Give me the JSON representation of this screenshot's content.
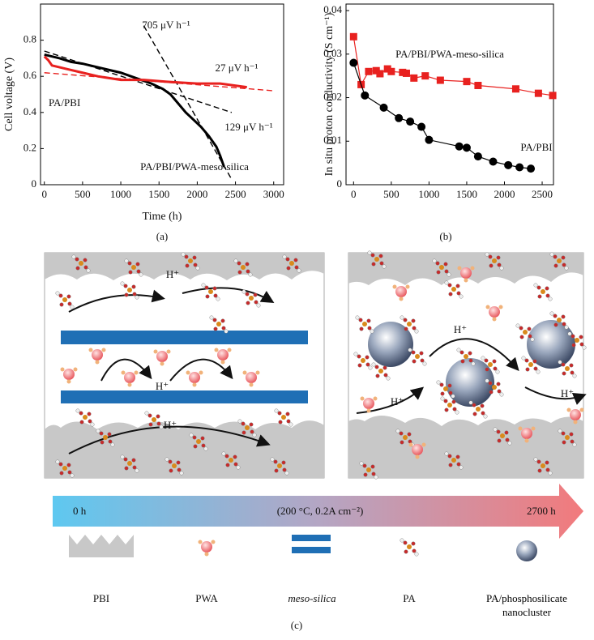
{
  "chart_data": [
    {
      "type": "line",
      "xlabel": "Time (h)",
      "ylabel": "Cell voltage (V)",
      "panel": "(a)",
      "xlim": [
        -50,
        3130
      ],
      "xticks": [
        0,
        500,
        1000,
        1500,
        2000,
        2500,
        3000
      ],
      "ylim": [
        0,
        1.0
      ],
      "yticks": [
        0,
        0.2,
        0.4,
        0.6,
        0.8
      ],
      "series": [
        {
          "name": "PA/PBI",
          "color": "#000000",
          "x": [
            0,
            100,
            200,
            350,
            500,
            700,
            1000,
            1200,
            1400,
            1550,
            1650,
            1750,
            1850,
            1950,
            2050,
            2150,
            2250,
            2300,
            2350
          ],
          "values": [
            0.72,
            0.71,
            0.7,
            0.68,
            0.67,
            0.65,
            0.62,
            0.59,
            0.56,
            0.53,
            0.5,
            0.45,
            0.4,
            0.36,
            0.32,
            0.27,
            0.21,
            0.16,
            0.1
          ]
        },
        {
          "name": "PA/PBI/PWA-meso-silica",
          "color": "#e8211f",
          "x": [
            0,
            50,
            100,
            200,
            300,
            500,
            700,
            1000,
            1300,
            1600,
            2000,
            2300,
            2650
          ],
          "values": [
            0.71,
            0.69,
            0.66,
            0.65,
            0.64,
            0.62,
            0.6,
            0.58,
            0.58,
            0.57,
            0.56,
            0.56,
            0.54
          ]
        }
      ],
      "fits": [
        {
          "label": "705 μV h⁻¹",
          "color": "#000000",
          "x": [
            1300,
            2450
          ],
          "values": [
            0.88,
            0.03
          ]
        },
        {
          "label": "27 μV h⁻¹",
          "color": "#e8211f",
          "x": [
            0,
            3000
          ],
          "values": [
            0.62,
            0.52
          ]
        },
        {
          "label": "129 μV h⁻¹",
          "color": "#000000",
          "x": [
            0,
            2450
          ],
          "values": [
            0.74,
            0.4
          ]
        }
      ]
    },
    {
      "type": "line",
      "ylabel": "In situ proton conductivity (S cm⁻¹)",
      "panel": "(b)",
      "xlim": [
        -100,
        2650
      ],
      "xticks": [
        0,
        500,
        1000,
        1500,
        2000,
        2500
      ],
      "ylim": [
        0,
        0.0415
      ],
      "yticks": [
        0,
        0.01,
        0.02,
        0.03,
        0.04
      ],
      "series": [
        {
          "name": "PA/PBI/PWA-meso-silica",
          "color": "#e8211f",
          "marker": "square",
          "x": [
            0,
            100,
            200,
            300,
            350,
            450,
            500,
            650,
            700,
            800,
            950,
            1150,
            1500,
            1650,
            2150,
            2450,
            2640
          ],
          "values": [
            0.034,
            0.023,
            0.026,
            0.0262,
            0.0255,
            0.0266,
            0.026,
            0.0258,
            0.0256,
            0.0245,
            0.025,
            0.024,
            0.0237,
            0.0228,
            0.022,
            0.021,
            0.0205
          ]
        },
        {
          "name": "PA/PBI",
          "color": "#000000",
          "marker": "circle",
          "x": [
            0,
            150,
            400,
            600,
            750,
            900,
            1000,
            1400,
            1500,
            1650,
            1850,
            2050,
            2200,
            2350
          ],
          "values": [
            0.028,
            0.0205,
            0.0177,
            0.0153,
            0.0145,
            0.0133,
            0.0103,
            0.0088,
            0.0085,
            0.0065,
            0.0053,
            0.0045,
            0.004,
            0.0037
          ]
        }
      ]
    }
  ],
  "diagram": {
    "proton_labels": [
      "H⁺",
      "H⁺",
      "H⁺",
      "H⁺",
      "H⁺",
      "H⁺"
    ],
    "timeline": {
      "start": "0 h",
      "condition": "(200 °C, 0.2A cm⁻²)",
      "end": "2700 h"
    },
    "legend": [
      "PBI",
      "PWA",
      "meso-silica",
      "PA",
      "PA/phosphosilicate nanocluster"
    ],
    "panel": "(c)"
  }
}
